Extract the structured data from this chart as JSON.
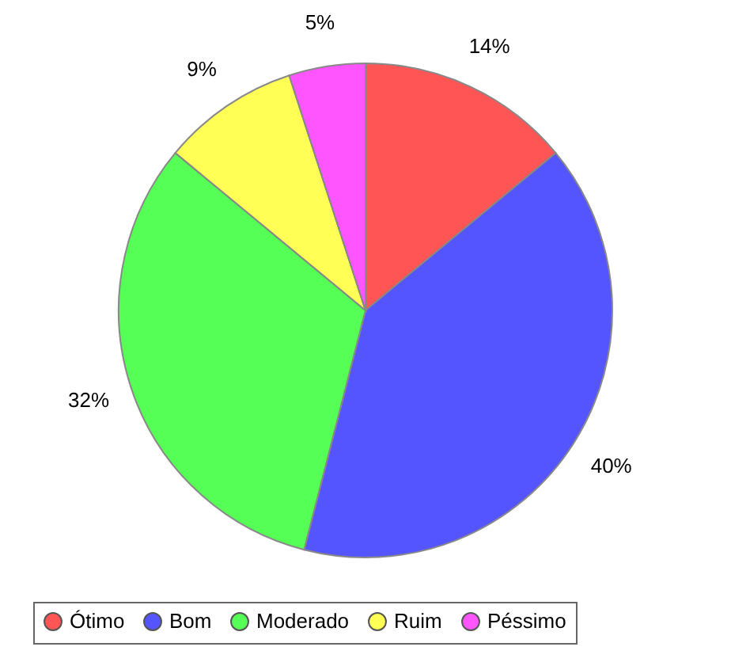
{
  "chart_data": {
    "type": "pie",
    "categories": [
      "Ótimo",
      "Bom",
      "Moderado",
      "Ruim",
      "Péssimo"
    ],
    "values": [
      14,
      40,
      32,
      9,
      5
    ],
    "colors": [
      "#ff5555",
      "#5555ff",
      "#55ff55",
      "#ffff55",
      "#ff55ff"
    ],
    "value_labels": [
      "14%",
      "40%",
      "32%",
      "9%",
      "5%"
    ],
    "legend": "bottom"
  }
}
